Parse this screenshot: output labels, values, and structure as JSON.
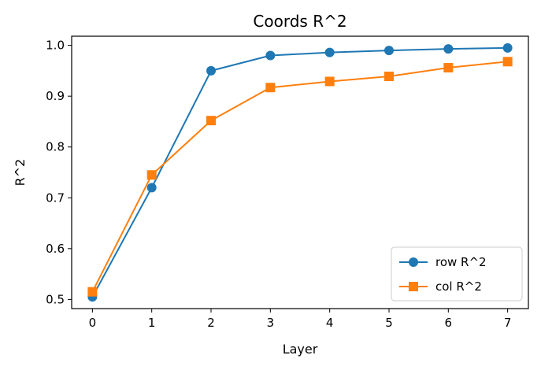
{
  "chart_data": {
    "type": "line",
    "title": "Coords R^2",
    "xlabel": "Layer",
    "ylabel": "R^2",
    "x": [
      0,
      1,
      2,
      3,
      4,
      5,
      6,
      7
    ],
    "xlim": [
      -0.35,
      7.35
    ],
    "ylim": [
      0.482,
      1.018
    ],
    "x_ticks": [
      "0",
      "1",
      "2",
      "3",
      "4",
      "5",
      "6",
      "7"
    ],
    "y_ticks": [
      "0.5",
      "0.6",
      "0.7",
      "0.8",
      "0.9",
      "1.0"
    ],
    "grid": false,
    "legend_position": "lower-right",
    "series": [
      {
        "name": "row R^2",
        "color": "#1f77b4",
        "marker": "circle",
        "values": [
          0.505,
          0.72,
          0.95,
          0.98,
          0.986,
          0.99,
          0.993,
          0.995
        ]
      },
      {
        "name": "col R^2",
        "color": "#ff7f0e",
        "marker": "square",
        "values": [
          0.515,
          0.745,
          0.852,
          0.917,
          0.929,
          0.939,
          0.956,
          0.968
        ]
      }
    ]
  }
}
